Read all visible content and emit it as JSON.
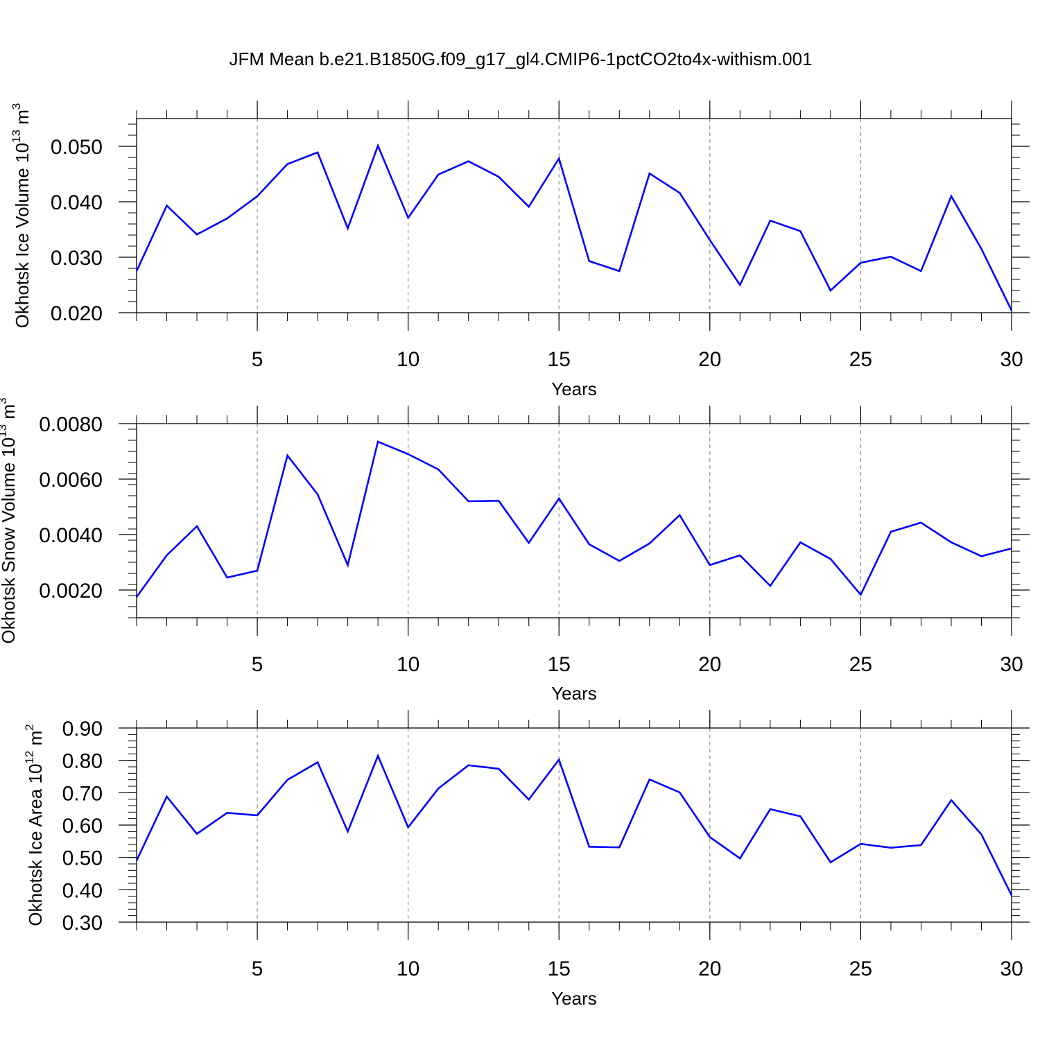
{
  "title": "JFM Mean b.e21.B1850G.f09_g17_gl4.CMIP6-1pctCO2to4x-withism.001",
  "line_color": "#0000ff",
  "chart_data": [
    {
      "type": "line",
      "xlabel": "Years",
      "ylabel": {
        "text": "Okhotsk Ice Volume 10",
        "exp": "13",
        "unit": " m",
        "unit_exp": "3"
      },
      "xlim": [
        1,
        30
      ],
      "ylim": [
        0.02,
        0.055
      ],
      "xticks": [
        5,
        10,
        15,
        20,
        25,
        30
      ],
      "xtick_labels": [
        "5",
        "10",
        "15",
        "20",
        "25",
        "30"
      ],
      "yticks": [
        0.02,
        0.03,
        0.04,
        0.05
      ],
      "ytick_labels": [
        "0.020",
        "0.030",
        "0.040",
        "0.050"
      ],
      "grid": "vertical dashed at major x ticks",
      "x": [
        1,
        2,
        3,
        4,
        5,
        6,
        7,
        8,
        9,
        10,
        11,
        12,
        13,
        14,
        15,
        16,
        17,
        18,
        19,
        20,
        21,
        22,
        23,
        24,
        25,
        26,
        27,
        28,
        29,
        30
      ],
      "values": [
        0.0275,
        0.0393,
        0.0341,
        0.037,
        0.041,
        0.0468,
        0.0489,
        0.0352,
        0.0501,
        0.0371,
        0.0449,
        0.0473,
        0.0445,
        0.0391,
        0.0478,
        0.0293,
        0.0275,
        0.0451,
        0.0416,
        0.0331,
        0.025,
        0.0366,
        0.0347,
        0.024,
        0.029,
        0.0301,
        0.0275,
        0.041,
        0.0315,
        0.0204
      ]
    },
    {
      "type": "line",
      "xlabel": "Years",
      "ylabel": {
        "text": "Okhotsk Snow Volume 10",
        "exp": "13",
        "unit": " m",
        "unit_exp": "3"
      },
      "xlim": [
        1,
        30
      ],
      "ylim": [
        0.001,
        0.008
      ],
      "xticks": [
        5,
        10,
        15,
        20,
        25,
        30
      ],
      "xtick_labels": [
        "5",
        "10",
        "15",
        "20",
        "25",
        "30"
      ],
      "yticks": [
        0.002,
        0.004,
        0.006,
        0.008
      ],
      "ytick_labels": [
        "0.0020",
        "0.0040",
        "0.0060",
        "0.0080"
      ],
      "grid": "vertical dashed at major x ticks",
      "x": [
        1,
        2,
        3,
        4,
        5,
        6,
        7,
        8,
        9,
        10,
        11,
        12,
        13,
        14,
        15,
        16,
        17,
        18,
        19,
        20,
        21,
        22,
        23,
        24,
        25,
        26,
        27,
        28,
        29,
        30
      ],
      "values": [
        0.00175,
        0.00325,
        0.0043,
        0.00245,
        0.0027,
        0.00685,
        0.00545,
        0.0029,
        0.00735,
        0.0069,
        0.00635,
        0.0052,
        0.00522,
        0.0037,
        0.0053,
        0.00365,
        0.00305,
        0.00368,
        0.0047,
        0.0029,
        0.00325,
        0.00215,
        0.00372,
        0.00312,
        0.00183,
        0.0041,
        0.00443,
        0.00372,
        0.00322,
        0.0035
      ]
    },
    {
      "type": "line",
      "xlabel": "Years",
      "ylabel": {
        "text": "Okhotsk Ice Area 10",
        "exp": "12",
        "unit": " m",
        "unit_exp": "2"
      },
      "xlim": [
        1,
        30
      ],
      "ylim": [
        0.3,
        0.9
      ],
      "xticks": [
        5,
        10,
        15,
        20,
        25,
        30
      ],
      "xtick_labels": [
        "5",
        "10",
        "15",
        "20",
        "25",
        "30"
      ],
      "yticks": [
        0.3,
        0.4,
        0.5,
        0.6,
        0.7,
        0.8,
        0.9
      ],
      "ytick_labels": [
        "0.30",
        "0.40",
        "0.50",
        "0.60",
        "0.70",
        "0.80",
        "0.90"
      ],
      "grid": "vertical dashed at major x ticks",
      "x": [
        1,
        2,
        3,
        4,
        5,
        6,
        7,
        8,
        9,
        10,
        11,
        12,
        13,
        14,
        15,
        16,
        17,
        18,
        19,
        20,
        21,
        22,
        23,
        24,
        25,
        26,
        27,
        28,
        29,
        30
      ],
      "values": [
        0.49,
        0.688,
        0.573,
        0.638,
        0.63,
        0.74,
        0.794,
        0.58,
        0.814,
        0.593,
        0.713,
        0.785,
        0.774,
        0.679,
        0.802,
        0.533,
        0.531,
        0.741,
        0.701,
        0.563,
        0.497,
        0.649,
        0.627,
        0.485,
        0.542,
        0.53,
        0.538,
        0.677,
        0.571,
        0.383
      ]
    }
  ]
}
